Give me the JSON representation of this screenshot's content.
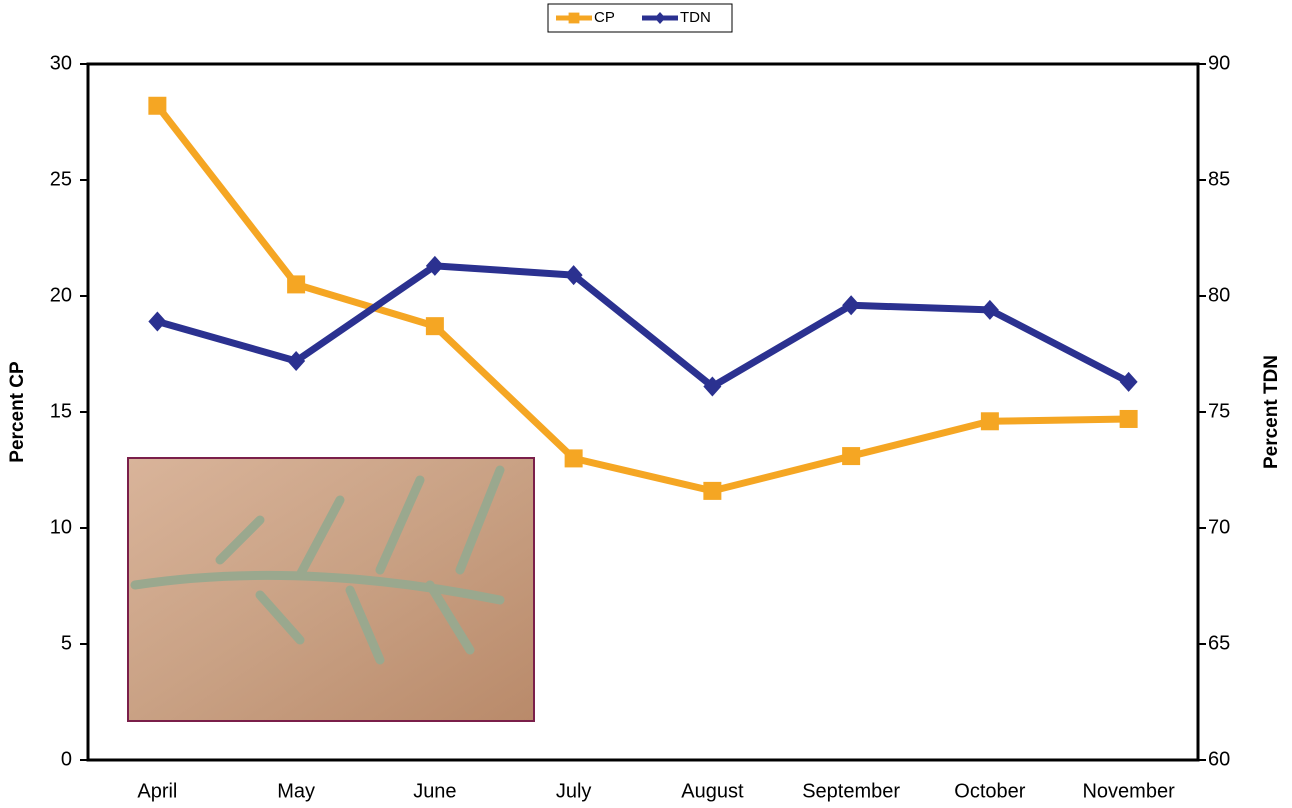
{
  "chart_data": {
    "type": "line",
    "categories": [
      "April",
      "May",
      "June",
      "July",
      "August",
      "September",
      "October",
      "November"
    ],
    "series": [
      {
        "name": "CP",
        "color": "#f5a623",
        "values": [
          28.2,
          20.5,
          18.7,
          13.0,
          11.6,
          13.1,
          14.6,
          14.7
        ]
      },
      {
        "name": "TDN",
        "color": "#2b3190",
        "axis": "y2",
        "values": [
          78.9,
          77.2,
          81.3,
          80.9,
          76.1,
          79.6,
          79.4,
          76.3
        ]
      }
    ],
    "y_label": "Percent CP",
    "y2_label": "Percent TDN",
    "ylim": [
      0,
      30
    ],
    "yticks": [
      0,
      5,
      10,
      15,
      20,
      25,
      30
    ],
    "y2lim": [
      60,
      90
    ],
    "y2ticks": [
      60,
      65,
      70,
      75,
      80,
      85,
      90
    ],
    "legend": "top"
  }
}
